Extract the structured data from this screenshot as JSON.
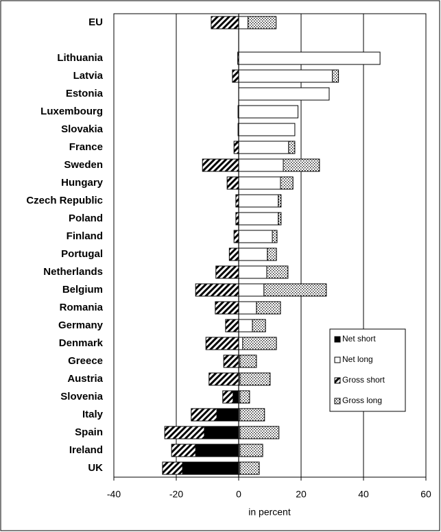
{
  "chart_data": {
    "type": "hbar_stacked",
    "xlabel": "in percent",
    "categories": [
      "EU",
      null,
      "Lithuania",
      "Latvia",
      "Estonia",
      "Luxembourg",
      "Slovakia",
      "France",
      "Sweden",
      "Hungary",
      "Czech Republic",
      "Poland",
      "Finland",
      "Portugal",
      "Netherlands",
      "Belgium",
      "Romania",
      "Germany",
      "Denmark",
      "Greece",
      "Austria",
      "Slovenia",
      "Italy",
      "Spain",
      "Ireland",
      "UK"
    ],
    "series": [
      {
        "name": "Net short",
        "color": "#000000",
        "pattern": "solid",
        "values": [
          0,
          null,
          0,
          0,
          0,
          0,
          0,
          0,
          0,
          0,
          0,
          0,
          0,
          0,
          0,
          0,
          0,
          0,
          0,
          0,
          0,
          -1.8,
          -7,
          -11,
          -13.8,
          -18
        ]
      },
      {
        "name": "Net long",
        "color": "#ffffff",
        "pattern": "solid",
        "values": [
          3,
          null,
          45.3,
          30,
          29,
          19,
          18,
          16,
          14.3,
          13.4,
          12.7,
          12.7,
          10.8,
          9.2,
          9,
          8.1,
          5.7,
          4.4,
          1.3,
          0.4,
          0.4,
          0.4,
          0.4,
          0.4,
          0.4,
          0.4
        ]
      },
      {
        "name": "Gross short",
        "color": "#000000",
        "pattern": "hatch",
        "values": [
          -8.8,
          null,
          -0.3,
          -2,
          0,
          -0.2,
          -0.2,
          -1.5,
          -11.6,
          -3.7,
          -0.9,
          -0.9,
          -1.5,
          -3,
          -7.3,
          -13.8,
          -7.5,
          -4.2,
          -10.5,
          -4.8,
          -9.5,
          -3.3,
          -8.2,
          -12.7,
          -7.7,
          -6.4
        ]
      },
      {
        "name": "Gross long",
        "color": "#000000",
        "pattern": "dots",
        "values": [
          9,
          null,
          0,
          2,
          0,
          0,
          0,
          2,
          11.6,
          4,
          0.9,
          0.9,
          1.5,
          2.9,
          6.8,
          20,
          7.7,
          4.2,
          10.8,
          5.3,
          9.7,
          3.1,
          7.9,
          12.5,
          7.3,
          6.2
        ]
      }
    ],
    "xlim": [
      -40,
      60
    ],
    "xticks": [
      -40,
      -20,
      0,
      20,
      40,
      60
    ],
    "grid": true,
    "legend": "lower right"
  }
}
